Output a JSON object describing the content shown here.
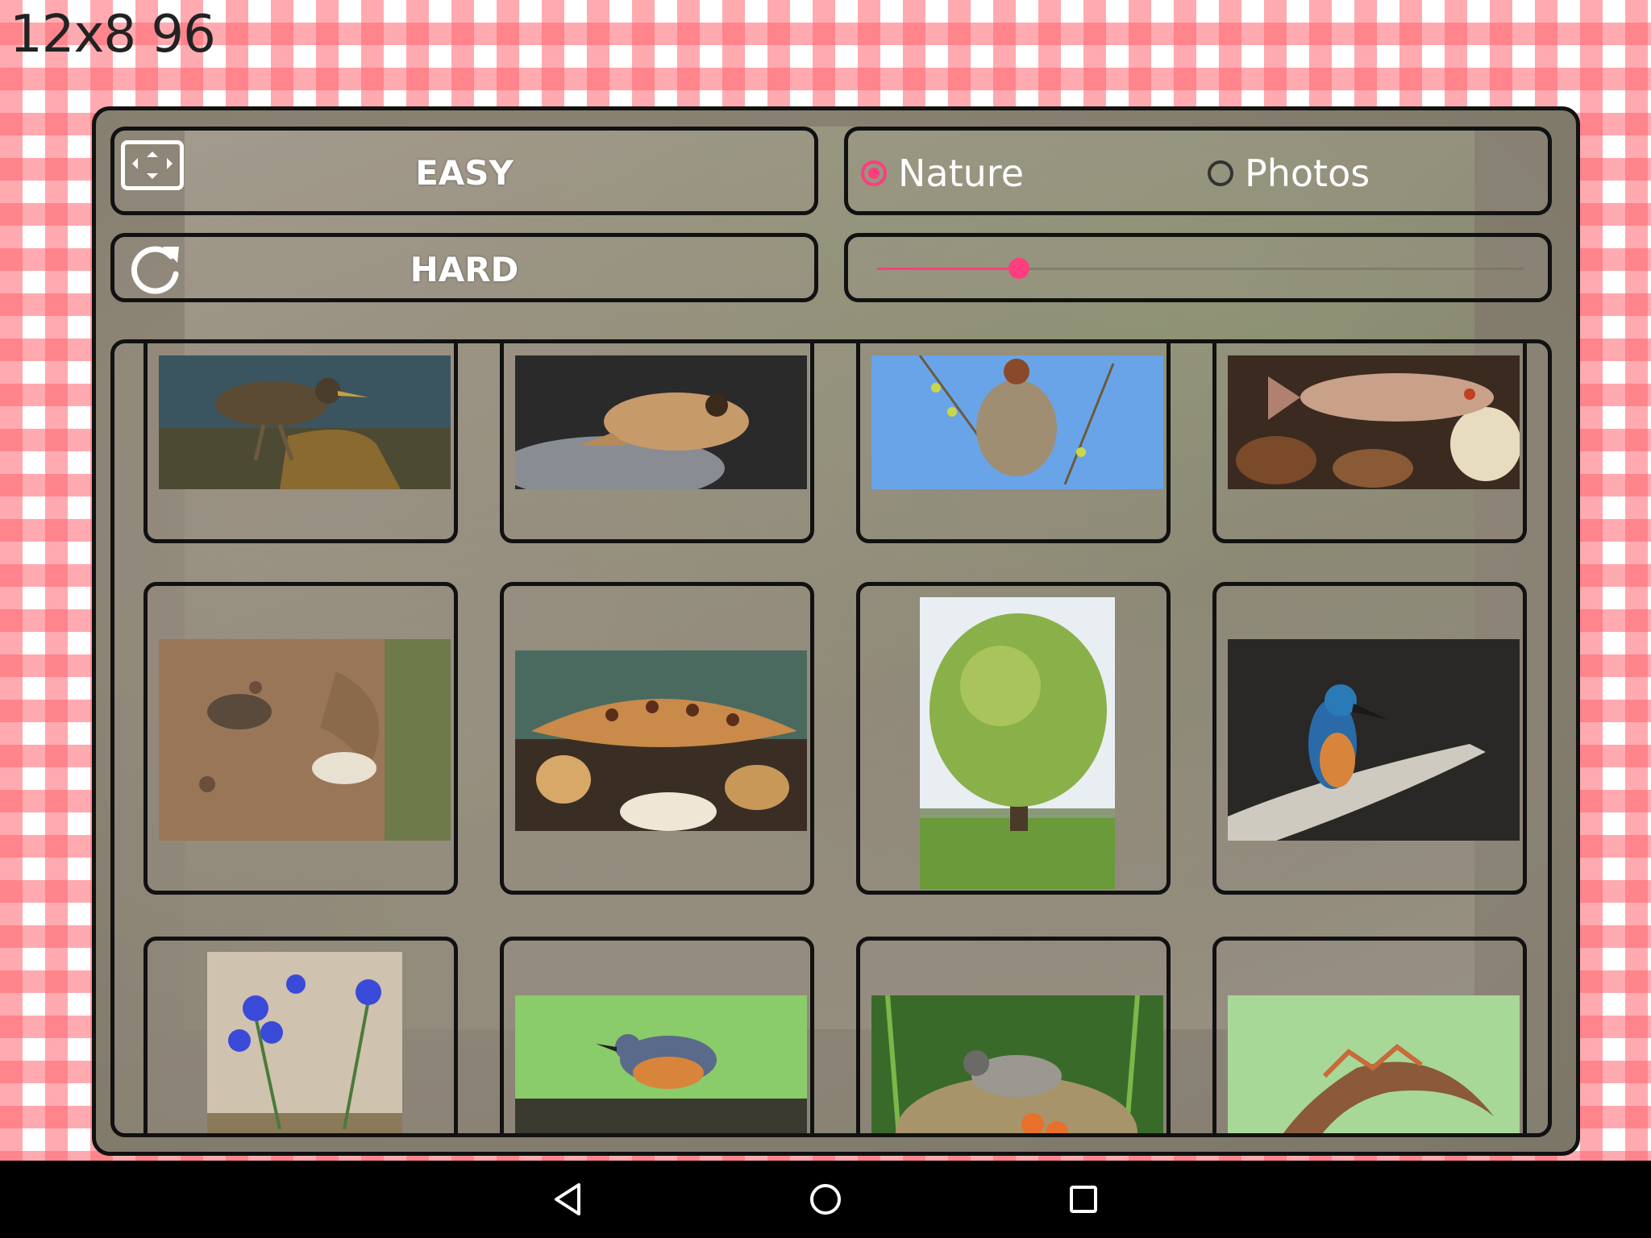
{
  "status": {
    "puzzle_info": "12x8 96"
  },
  "menu": {
    "easy_label": "EASY",
    "hard_label": "HARD",
    "categories": [
      {
        "label": "Nature",
        "selected": true
      },
      {
        "label": "Photos",
        "selected": false
      }
    ],
    "slider_level": 0.22
  },
  "grid": {
    "thumbnails": [
      {
        "icon": "rail-bird-thumbnail"
      },
      {
        "icon": "frog-thumbnail"
      },
      {
        "icon": "penduline-tit-nest-thumbnail"
      },
      {
        "icon": "fish-thumbnail"
      },
      {
        "icon": "sand-martin-thumbnail"
      },
      {
        "icon": "loach-fish-thumbnail"
      },
      {
        "icon": "willow-tree-thumbnail"
      },
      {
        "icon": "kingfisher-thumbnail"
      },
      {
        "icon": "blue-squill-flowers-thumbnail"
      },
      {
        "icon": "nuthatch-thumbnail"
      },
      {
        "icon": "warbler-nest-thumbnail"
      },
      {
        "icon": "newt-thumbnail"
      }
    ]
  },
  "colors": {
    "accent": "#ff3d7f",
    "frame": "#111111",
    "checker": "#ff646e"
  },
  "navbar": {
    "icons": [
      "back-icon",
      "home-icon",
      "recents-icon"
    ]
  }
}
